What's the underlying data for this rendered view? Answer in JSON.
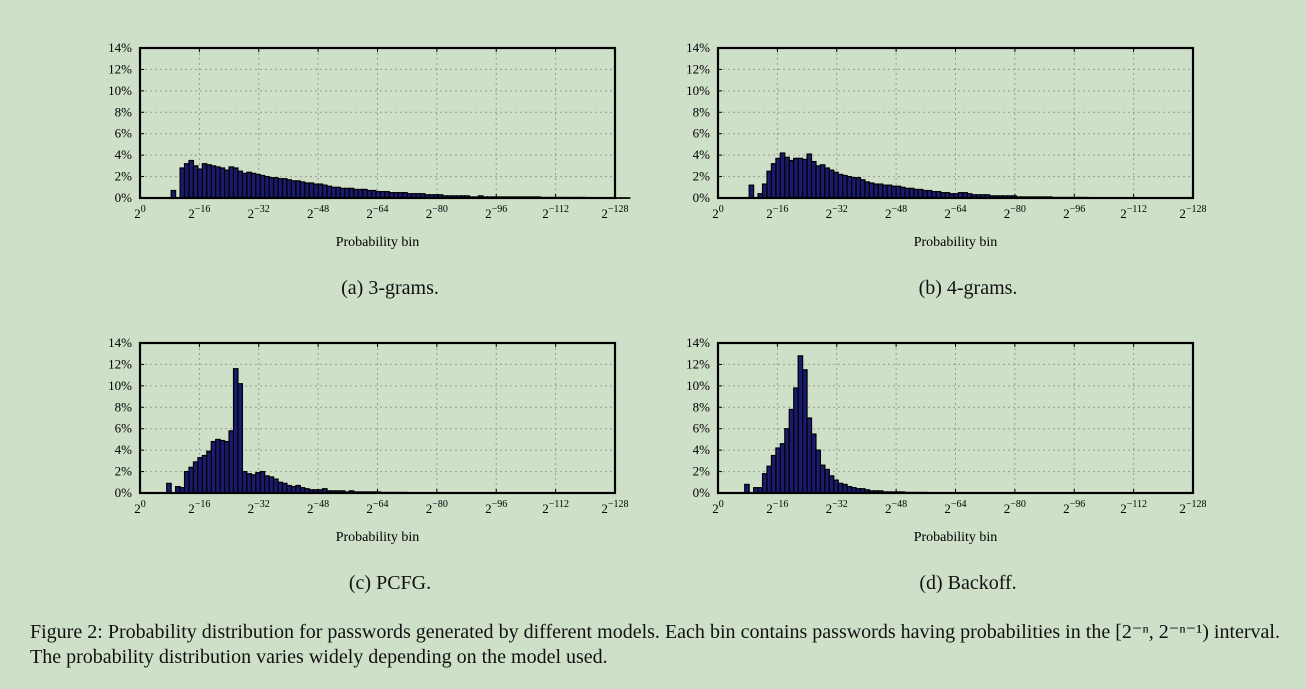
{
  "caption": "Figure 2: Probability distribution for passwords generated by different models. Each bin contains passwords having probabilities in the [2⁻ⁿ, 2⁻ⁿ⁻¹) interval. The probability distribution varies widely depending on the model used.",
  "colors": {
    "bar": "#1a1a6e",
    "bar_stroke": "#000000",
    "grid": "#999999",
    "background": "#cfe0c9"
  },
  "chart_data": [
    {
      "type": "bar",
      "subcaption": "(a) 3-grams.",
      "xlabel": "Probability bin",
      "ylabel": "",
      "ylim": [
        0,
        14
      ],
      "yticks": [
        "0%",
        "2%",
        "4%",
        "6%",
        "8%",
        "10%",
        "12%",
        "14%"
      ],
      "xticks": [
        "2^0",
        "2^-16",
        "2^-32",
        "2^-48",
        "2^-64",
        "2^-80",
        "2^-96",
        "2^-112",
        "2^-128"
      ],
      "xlim": [
        0,
        128
      ],
      "grid": true,
      "values": [
        0,
        0,
        0,
        0,
        0,
        0,
        0,
        0.7,
        0,
        2.8,
        3.2,
        3.5,
        3.0,
        2.7,
        3.2,
        3.1,
        3.0,
        2.9,
        2.8,
        2.6,
        2.9,
        2.8,
        2.5,
        2.3,
        2.4,
        2.3,
        2.2,
        2.1,
        2.0,
        1.9,
        1.9,
        1.8,
        1.8,
        1.7,
        1.6,
        1.6,
        1.5,
        1.4,
        1.4,
        1.3,
        1.3,
        1.2,
        1.1,
        1.0,
        1.0,
        0.9,
        0.9,
        0.9,
        0.8,
        0.8,
        0.8,
        0.7,
        0.7,
        0.6,
        0.6,
        0.6,
        0.5,
        0.5,
        0.5,
        0.5,
        0.4,
        0.4,
        0.4,
        0.4,
        0.3,
        0.3,
        0.3,
        0.3,
        0.2,
        0.2,
        0.2,
        0.2,
        0.2,
        0.2,
        0.1,
        0.1,
        0.2,
        0.1,
        0.1,
        0.1,
        0.1,
        0.1,
        0.1,
        0.1,
        0.1,
        0.1,
        0.1,
        0.1,
        0.1,
        0.1,
        0.05,
        0.05,
        0.05,
        0.05,
        0.05,
        0.05,
        0.05,
        0.05,
        0.05,
        0.05,
        0.02,
        0.02,
        0.02,
        0.02,
        0.02,
        0.02,
        0.02,
        0.02,
        0.02,
        0.02
      ]
    },
    {
      "type": "bar",
      "subcaption": "(b) 4-grams.",
      "xlabel": "Probability bin",
      "ylabel": "",
      "ylim": [
        0,
        14
      ],
      "yticks": [
        "0%",
        "2%",
        "4%",
        "6%",
        "8%",
        "10%",
        "12%",
        "14%"
      ],
      "xticks": [
        "2^0",
        "2^-16",
        "2^-32",
        "2^-48",
        "2^-64",
        "2^-80",
        "2^-96",
        "2^-112",
        "2^-128"
      ],
      "xlim": [
        0,
        128
      ],
      "grid": true,
      "values": [
        0,
        0,
        0,
        0,
        0,
        0,
        0,
        1.2,
        0,
        0.4,
        1.3,
        2.5,
        3.2,
        3.7,
        4.2,
        3.8,
        3.5,
        3.7,
        3.7,
        3.6,
        4.1,
        3.4,
        3.0,
        3.1,
        2.8,
        2.6,
        2.4,
        2.2,
        2.1,
        2.0,
        1.9,
        1.9,
        1.7,
        1.5,
        1.4,
        1.3,
        1.3,
        1.2,
        1.2,
        1.1,
        1.1,
        1.0,
        0.9,
        0.9,
        0.8,
        0.8,
        0.7,
        0.7,
        0.6,
        0.6,
        0.5,
        0.5,
        0.4,
        0.4,
        0.5,
        0.5,
        0.4,
        0.3,
        0.3,
        0.3,
        0.3,
        0.2,
        0.2,
        0.2,
        0.2,
        0.2,
        0.2,
        0.1,
        0.1,
        0.1,
        0.1,
        0.1,
        0.1,
        0.1,
        0.1,
        0.05,
        0.05,
        0.05,
        0.05,
        0.05,
        0.05,
        0.05,
        0.05,
        0.02,
        0.02,
        0.02,
        0.02,
        0.02,
        0.02,
        0.02,
        0.02,
        0.02,
        0.02,
        0.02,
        0.02,
        0.02,
        0.02,
        0.02,
        0.02,
        0.02
      ]
    },
    {
      "type": "bar",
      "subcaption": "(c) PCFG.",
      "xlabel": "Probability bin",
      "ylabel": "",
      "ylim": [
        0,
        14
      ],
      "yticks": [
        "0%",
        "2%",
        "4%",
        "6%",
        "8%",
        "10%",
        "12%",
        "14%"
      ],
      "xticks": [
        "2^0",
        "2^-16",
        "2^-32",
        "2^-48",
        "2^-64",
        "2^-80",
        "2^-96",
        "2^-112",
        "2^-128"
      ],
      "xlim": [
        0,
        128
      ],
      "grid": true,
      "values": [
        0,
        0,
        0,
        0,
        0,
        0,
        0.9,
        0,
        0.6,
        0.5,
        2.0,
        2.4,
        2.9,
        3.3,
        3.5,
        3.9,
        4.8,
        5.0,
        4.9,
        4.8,
        5.8,
        11.6,
        10.2,
        2.0,
        1.8,
        1.7,
        1.9,
        2.0,
        1.6,
        1.5,
        1.3,
        1.0,
        0.9,
        0.7,
        0.6,
        0.7,
        0.5,
        0.4,
        0.3,
        0.3,
        0.3,
        0.4,
        0.2,
        0.2,
        0.2,
        0.2,
        0.1,
        0.2,
        0.1,
        0.1,
        0.1,
        0.1,
        0.1,
        0.1,
        0.05,
        0.05,
        0.05,
        0.05,
        0.05,
        0.05,
        0.02,
        0.02,
        0.02,
        0.02,
        0.02,
        0.02,
        0.02,
        0.02,
        0.02,
        0.02
      ]
    },
    {
      "type": "bar",
      "subcaption": "(d) Backoff.",
      "xlabel": "Probability bin",
      "ylabel": "",
      "ylim": [
        0,
        14
      ],
      "yticks": [
        "0%",
        "2%",
        "4%",
        "6%",
        "8%",
        "10%",
        "12%",
        "14%"
      ],
      "xticks": [
        "2^0",
        "2^-16",
        "2^-32",
        "2^-48",
        "2^-64",
        "2^-80",
        "2^-96",
        "2^-112",
        "2^-128"
      ],
      "xlim": [
        0,
        128
      ],
      "grid": true,
      "values": [
        0,
        0,
        0,
        0,
        0,
        0,
        0.8,
        0,
        0.5,
        0.5,
        1.8,
        2.5,
        3.5,
        4.2,
        4.6,
        6.0,
        7.8,
        9.8,
        12.8,
        11.5,
        7.0,
        5.5,
        4.0,
        2.6,
        2.2,
        1.6,
        1.2,
        0.9,
        0.8,
        0.6,
        0.5,
        0.4,
        0.4,
        0.3,
        0.2,
        0.2,
        0.2,
        0.1,
        0.1,
        0.1,
        0.1,
        0.1,
        0.05,
        0.05,
        0.05,
        0.05,
        0.05,
        0.02,
        0.02,
        0.02,
        0.02,
        0.02,
        0.02,
        0.02,
        0.02,
        0.02
      ]
    }
  ]
}
